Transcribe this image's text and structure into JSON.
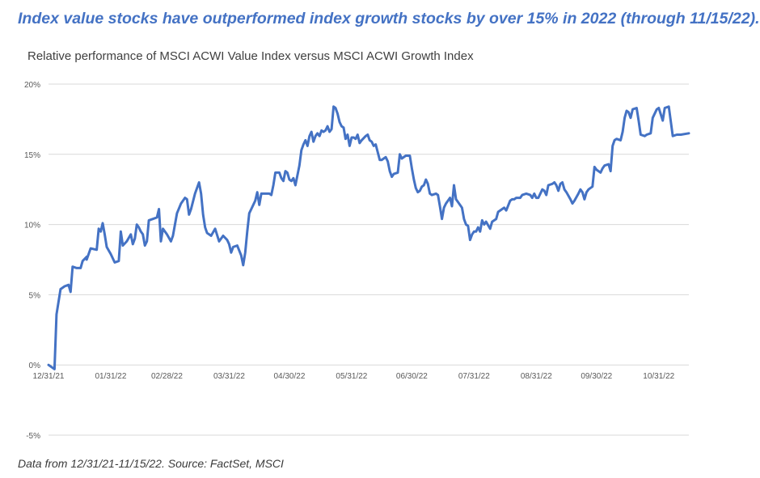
{
  "headline": "Index value stocks have outperformed index growth stocks by over 15% in 2022 (through 11/15/22).",
  "footnote": "Data from 12/31/21-11/15/22. Source: FactSet, MSCI",
  "colors": {
    "headline": "#4472c4",
    "line": "#4472c4",
    "grid": "#d9d9d9",
    "tick_text": "#595959"
  },
  "chart_data": {
    "type": "line",
    "title": "Relative performance of MSCI ACWI Value Index versus MSCI ACWI Growth Index",
    "xlabel": "",
    "ylabel": "",
    "ylim": [
      -5,
      20
    ],
    "y_ticks": [
      {
        "value": 20,
        "label": "20%"
      },
      {
        "value": 15,
        "label": "15%"
      },
      {
        "value": 10,
        "label": "10%"
      },
      {
        "value": 5,
        "label": "5%"
      },
      {
        "value": 0,
        "label": "0%"
      },
      {
        "value": -5,
        "label": "-5%"
      }
    ],
    "xlim": [
      "2021-12-31",
      "2022-11-15"
    ],
    "x_ticks": [
      {
        "date": "2021-12-31",
        "label": "12/31/21"
      },
      {
        "date": "2022-01-31",
        "label": "01/31/22"
      },
      {
        "date": "2022-02-28",
        "label": "02/28/22"
      },
      {
        "date": "2022-03-31",
        "label": "03/31/22"
      },
      {
        "date": "2022-04-30",
        "label": "04/30/22"
      },
      {
        "date": "2022-05-31",
        "label": "05/31/22"
      },
      {
        "date": "2022-06-30",
        "label": "06/30/22"
      },
      {
        "date": "2022-07-31",
        "label": "07/31/22"
      },
      {
        "date": "2022-08-31",
        "label": "08/31/22"
      },
      {
        "date": "2022-09-30",
        "label": "09/30/22"
      },
      {
        "date": "2022-10-31",
        "label": "10/31/22"
      }
    ],
    "grid": true,
    "legend": "none",
    "series": [
      {
        "points": [
          [
            "2021-12-31",
            0.0
          ],
          [
            "2022-01-03",
            -0.3
          ],
          [
            "2022-01-04",
            3.6
          ],
          [
            "2022-01-06",
            5.4
          ],
          [
            "2022-01-08",
            5.6
          ],
          [
            "2022-01-10",
            5.7
          ],
          [
            "2022-01-11",
            5.2
          ],
          [
            "2022-01-12",
            7.0
          ],
          [
            "2022-01-14",
            6.9
          ],
          [
            "2022-01-16",
            6.9
          ],
          [
            "2022-01-17",
            7.4
          ],
          [
            "2022-01-19",
            7.7
          ],
          [
            "2022-01-19",
            7.5
          ],
          [
            "2022-01-21",
            8.3
          ],
          [
            "2022-01-24",
            8.2
          ],
          [
            "2022-01-25",
            9.7
          ],
          [
            "2022-01-26",
            9.5
          ],
          [
            "2022-01-27",
            10.1
          ],
          [
            "2022-01-28",
            9.3
          ],
          [
            "2022-01-29",
            8.4
          ],
          [
            "2022-01-31",
            7.9
          ],
          [
            "2022-02-02",
            7.3
          ],
          [
            "2022-02-04",
            7.4
          ],
          [
            "2022-02-05",
            9.5
          ],
          [
            "2022-02-06",
            8.5
          ],
          [
            "2022-02-08",
            8.8
          ],
          [
            "2022-02-10",
            9.3
          ],
          [
            "2022-02-11",
            8.6
          ],
          [
            "2022-02-12",
            9.0
          ],
          [
            "2022-02-13",
            10.0
          ],
          [
            "2022-02-14",
            9.8
          ],
          [
            "2022-02-15",
            9.5
          ],
          [
            "2022-02-16",
            9.3
          ],
          [
            "2022-02-17",
            8.5
          ],
          [
            "2022-02-18",
            8.8
          ],
          [
            "2022-02-19",
            10.3
          ],
          [
            "2022-02-21",
            10.4
          ],
          [
            "2022-02-23",
            10.5
          ],
          [
            "2022-02-24",
            11.1
          ],
          [
            "2022-02-25",
            8.8
          ],
          [
            "2022-02-26",
            9.7
          ],
          [
            "2022-02-28",
            9.3
          ],
          [
            "2022-03-02",
            8.8
          ],
          [
            "2022-03-03",
            9.2
          ],
          [
            "2022-03-05",
            10.8
          ],
          [
            "2022-03-07",
            11.5
          ],
          [
            "2022-03-09",
            11.9
          ],
          [
            "2022-03-10",
            11.8
          ],
          [
            "2022-03-11",
            10.7
          ],
          [
            "2022-03-12",
            11.1
          ],
          [
            "2022-03-14",
            12.2
          ],
          [
            "2022-03-16",
            13.0
          ],
          [
            "2022-03-17",
            12.2
          ],
          [
            "2022-03-18",
            10.7
          ],
          [
            "2022-03-19",
            9.8
          ],
          [
            "2022-03-20",
            9.4
          ],
          [
            "2022-03-22",
            9.2
          ],
          [
            "2022-03-24",
            9.7
          ],
          [
            "2022-03-26",
            8.8
          ],
          [
            "2022-03-28",
            9.2
          ],
          [
            "2022-03-30",
            8.9
          ],
          [
            "2022-03-31",
            8.6
          ],
          [
            "2022-04-01",
            8.0
          ],
          [
            "2022-04-02",
            8.4
          ],
          [
            "2022-04-04",
            8.5
          ],
          [
            "2022-04-06",
            7.8
          ],
          [
            "2022-04-07",
            7.1
          ],
          [
            "2022-04-08",
            8.0
          ],
          [
            "2022-04-09",
            9.5
          ],
          [
            "2022-04-10",
            10.8
          ],
          [
            "2022-04-11",
            11.1
          ],
          [
            "2022-04-13",
            11.7
          ],
          [
            "2022-04-14",
            12.3
          ],
          [
            "2022-04-15",
            11.4
          ],
          [
            "2022-04-16",
            12.2
          ],
          [
            "2022-04-18",
            12.2
          ],
          [
            "2022-04-20",
            12.2
          ],
          [
            "2022-04-21",
            12.1
          ],
          [
            "2022-04-22",
            12.8
          ],
          [
            "2022-04-23",
            13.7
          ],
          [
            "2022-04-25",
            13.7
          ],
          [
            "2022-04-26",
            13.3
          ],
          [
            "2022-04-27",
            13.1
          ],
          [
            "2022-04-28",
            13.8
          ],
          [
            "2022-04-29",
            13.7
          ],
          [
            "2022-04-30",
            13.2
          ],
          [
            "2022-05-01",
            13.1
          ],
          [
            "2022-05-02",
            13.3
          ],
          [
            "2022-05-03",
            12.8
          ],
          [
            "2022-05-05",
            14.2
          ],
          [
            "2022-05-06",
            15.3
          ],
          [
            "2022-05-07",
            15.7
          ],
          [
            "2022-05-08",
            16.0
          ],
          [
            "2022-05-09",
            15.6
          ],
          [
            "2022-05-10",
            16.3
          ],
          [
            "2022-05-11",
            16.6
          ],
          [
            "2022-05-12",
            15.9
          ],
          [
            "2022-05-13",
            16.3
          ],
          [
            "2022-05-14",
            16.5
          ],
          [
            "2022-05-15",
            16.3
          ],
          [
            "2022-05-16",
            16.7
          ],
          [
            "2022-05-17",
            16.6
          ],
          [
            "2022-05-18",
            16.7
          ],
          [
            "2022-05-19",
            17.0
          ],
          [
            "2022-05-20",
            16.6
          ],
          [
            "2022-05-21",
            16.8
          ],
          [
            "2022-05-22",
            18.4
          ],
          [
            "2022-05-23",
            18.3
          ],
          [
            "2022-05-24",
            17.9
          ],
          [
            "2022-05-25",
            17.3
          ],
          [
            "2022-05-26",
            17.0
          ],
          [
            "2022-05-27",
            16.9
          ],
          [
            "2022-05-28",
            16.1
          ],
          [
            "2022-05-29",
            16.4
          ],
          [
            "2022-05-30",
            15.6
          ],
          [
            "2022-05-31",
            16.2
          ],
          [
            "2022-06-01",
            16.2
          ],
          [
            "2022-06-02",
            16.1
          ],
          [
            "2022-06-03",
            16.4
          ],
          [
            "2022-06-04",
            15.8
          ],
          [
            "2022-06-05",
            16.0
          ],
          [
            "2022-06-07",
            16.3
          ],
          [
            "2022-06-08",
            16.4
          ],
          [
            "2022-06-09",
            16.0
          ],
          [
            "2022-06-10",
            15.9
          ],
          [
            "2022-06-11",
            15.6
          ],
          [
            "2022-06-12",
            15.7
          ],
          [
            "2022-06-14",
            14.6
          ],
          [
            "2022-06-15",
            14.6
          ],
          [
            "2022-06-17",
            14.8
          ],
          [
            "2022-06-18",
            14.5
          ],
          [
            "2022-06-19",
            13.8
          ],
          [
            "2022-06-20",
            13.4
          ],
          [
            "2022-06-21",
            13.6
          ],
          [
            "2022-06-23",
            13.7
          ],
          [
            "2022-06-24",
            15.0
          ],
          [
            "2022-06-25",
            14.7
          ],
          [
            "2022-06-27",
            14.9
          ],
          [
            "2022-06-29",
            14.9
          ],
          [
            "2022-06-30",
            14.0
          ],
          [
            "2022-07-01",
            13.2
          ],
          [
            "2022-07-02",
            12.6
          ],
          [
            "2022-07-03",
            12.3
          ],
          [
            "2022-07-04",
            12.4
          ],
          [
            "2022-07-05",
            12.7
          ],
          [
            "2022-07-06",
            12.8
          ],
          [
            "2022-07-07",
            13.2
          ],
          [
            "2022-07-08",
            12.9
          ],
          [
            "2022-07-09",
            12.2
          ],
          [
            "2022-07-10",
            12.1
          ],
          [
            "2022-07-12",
            12.2
          ],
          [
            "2022-07-13",
            12.1
          ],
          [
            "2022-07-14",
            11.3
          ],
          [
            "2022-07-15",
            10.4
          ],
          [
            "2022-07-16",
            11.2
          ],
          [
            "2022-07-17",
            11.5
          ],
          [
            "2022-07-19",
            11.9
          ],
          [
            "2022-07-20",
            11.3
          ],
          [
            "2022-07-21",
            12.8
          ],
          [
            "2022-07-22",
            11.8
          ],
          [
            "2022-07-23",
            11.6
          ],
          [
            "2022-07-25",
            11.2
          ],
          [
            "2022-07-26",
            10.4
          ],
          [
            "2022-07-27",
            10.0
          ],
          [
            "2022-07-28",
            9.9
          ],
          [
            "2022-07-29",
            8.9
          ],
          [
            "2022-07-30",
            9.3
          ],
          [
            "2022-07-31",
            9.5
          ],
          [
            "2022-08-01",
            9.5
          ],
          [
            "2022-08-02",
            9.8
          ],
          [
            "2022-08-03",
            9.5
          ],
          [
            "2022-08-04",
            10.3
          ],
          [
            "2022-08-05",
            10.0
          ],
          [
            "2022-08-06",
            10.2
          ],
          [
            "2022-08-08",
            9.7
          ],
          [
            "2022-08-09",
            10.2
          ],
          [
            "2022-08-11",
            10.4
          ],
          [
            "2022-08-12",
            10.9
          ],
          [
            "2022-08-14",
            11.1
          ],
          [
            "2022-08-15",
            11.2
          ],
          [
            "2022-08-16",
            11.0
          ],
          [
            "2022-08-18",
            11.7
          ],
          [
            "2022-08-19",
            11.8
          ],
          [
            "2022-08-20",
            11.8
          ],
          [
            "2022-08-21",
            11.9
          ],
          [
            "2022-08-23",
            11.9
          ],
          [
            "2022-08-24",
            12.1
          ],
          [
            "2022-08-26",
            12.2
          ],
          [
            "2022-08-28",
            12.1
          ],
          [
            "2022-08-29",
            11.9
          ],
          [
            "2022-08-30",
            12.2
          ],
          [
            "2022-08-31",
            11.9
          ],
          [
            "2022-09-01",
            11.9
          ],
          [
            "2022-09-03",
            12.5
          ],
          [
            "2022-09-04",
            12.4
          ],
          [
            "2022-09-05",
            12.1
          ],
          [
            "2022-09-06",
            12.8
          ],
          [
            "2022-09-08",
            12.9
          ],
          [
            "2022-09-09",
            13.0
          ],
          [
            "2022-09-10",
            12.8
          ],
          [
            "2022-09-11",
            12.4
          ],
          [
            "2022-09-12",
            12.9
          ],
          [
            "2022-09-13",
            13.0
          ],
          [
            "2022-09-14",
            12.5
          ],
          [
            "2022-09-15",
            12.3
          ],
          [
            "2022-09-17",
            11.8
          ],
          [
            "2022-09-18",
            11.5
          ],
          [
            "2022-09-19",
            11.7
          ],
          [
            "2022-09-21",
            12.2
          ],
          [
            "2022-09-22",
            12.5
          ],
          [
            "2022-09-23",
            12.3
          ],
          [
            "2022-09-24",
            11.8
          ],
          [
            "2022-09-25",
            12.3
          ],
          [
            "2022-09-26",
            12.5
          ],
          [
            "2022-09-28",
            12.7
          ],
          [
            "2022-09-29",
            14.1
          ],
          [
            "2022-09-30",
            13.9
          ],
          [
            "2022-10-02",
            13.7
          ],
          [
            "2022-10-03",
            14.0
          ],
          [
            "2022-10-04",
            14.2
          ],
          [
            "2022-10-06",
            14.3
          ],
          [
            "2022-10-07",
            13.8
          ],
          [
            "2022-10-08",
            15.6
          ],
          [
            "2022-10-09",
            16.0
          ],
          [
            "2022-10-10",
            16.1
          ],
          [
            "2022-10-12",
            16.0
          ],
          [
            "2022-10-13",
            16.6
          ],
          [
            "2022-10-14",
            17.6
          ],
          [
            "2022-10-15",
            18.1
          ],
          [
            "2022-10-16",
            18.0
          ],
          [
            "2022-10-17",
            17.6
          ],
          [
            "2022-10-18",
            18.2
          ],
          [
            "2022-10-20",
            18.3
          ],
          [
            "2022-10-21",
            17.4
          ],
          [
            "2022-10-22",
            16.4
          ],
          [
            "2022-10-24",
            16.3
          ],
          [
            "2022-10-25",
            16.4
          ],
          [
            "2022-10-27",
            16.5
          ],
          [
            "2022-10-28",
            17.6
          ],
          [
            "2022-10-30",
            18.2
          ],
          [
            "2022-10-31",
            18.3
          ],
          [
            "2022-11-02",
            17.4
          ],
          [
            "2022-11-03",
            18.3
          ],
          [
            "2022-11-05",
            18.4
          ],
          [
            "2022-11-07",
            16.3
          ],
          [
            "2022-11-09",
            16.4
          ],
          [
            "2022-11-11",
            16.4
          ],
          [
            "2022-11-15",
            16.5
          ]
        ]
      }
    ]
  }
}
